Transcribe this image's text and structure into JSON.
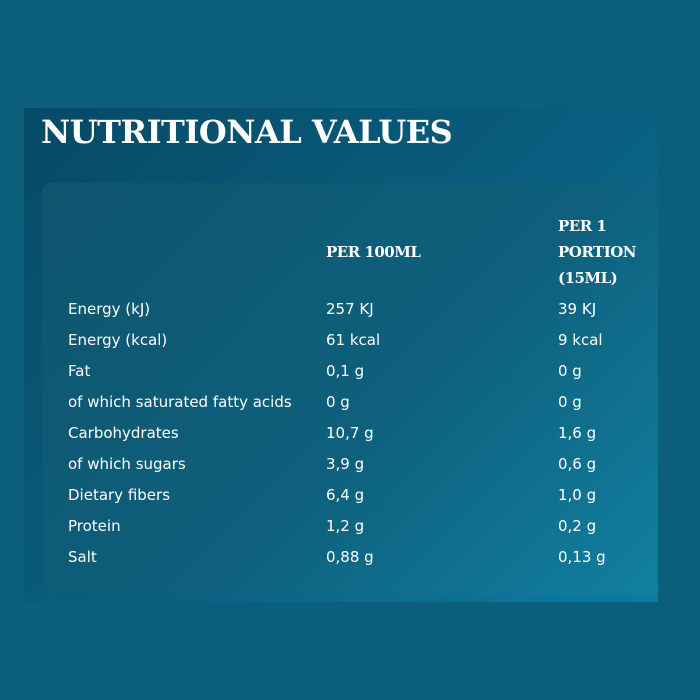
{
  "title": "NUTRITIONAL VALUES",
  "table": {
    "headers": [
      "",
      "PER 100ML",
      "PER 1 PORTION (15ML)"
    ],
    "rows": [
      {
        "name": "Energy (kJ)",
        "per100": "257 KJ",
        "portion": "39 KJ"
      },
      {
        "name": "Energy (kcal)",
        "per100": "61 kcal",
        "portion": "9 kcal"
      },
      {
        "name": "Fat",
        "per100": "0,1 g",
        "portion": "0 g"
      },
      {
        "name": "of which saturated fatty acids",
        "per100": "0 g",
        "portion": "0 g"
      },
      {
        "name": "Carbohydrates",
        "per100": "10,7 g",
        "portion": "1,6 g"
      },
      {
        "name": "of which sugars",
        "per100": "3,9 g",
        "portion": "0,6 g"
      },
      {
        "name": "Dietary fibers",
        "per100": "6,4 g",
        "portion": "1,0 g"
      },
      {
        "name": "Protein",
        "per100": "1,2 g",
        "portion": "0,2 g"
      },
      {
        "name": "Salt",
        "per100": "0,88 g",
        "portion": "0,13 g"
      }
    ]
  },
  "colors": {
    "background": "#0b5f7c",
    "panel": "#085470",
    "card": "#0e6282",
    "text": "#ffffff"
  }
}
